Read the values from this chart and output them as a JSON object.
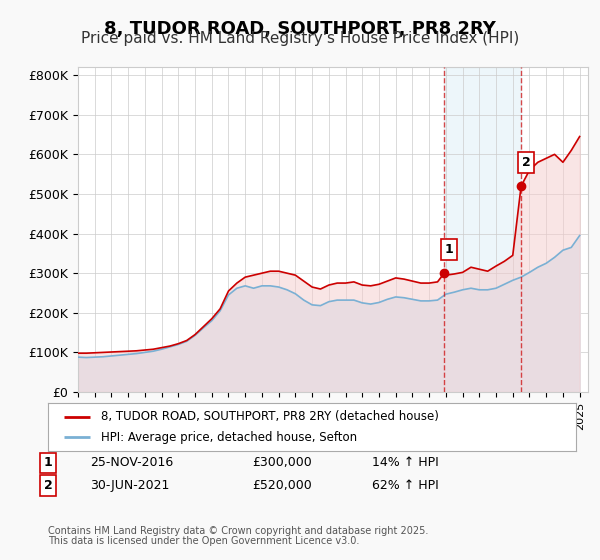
{
  "title": "8, TUDOR ROAD, SOUTHPORT, PR8 2RY",
  "subtitle": "Price paid vs. HM Land Registry's House Price Index (HPI)",
  "title_fontsize": 13,
  "subtitle_fontsize": 11,
  "background_color": "#f9f9f9",
  "plot_bg_color": "#ffffff",
  "red_line_color": "#cc0000",
  "blue_line_color": "#7ab0d4",
  "blue_fill_color": "#ddeef7",
  "ylim": [
    0,
    820000
  ],
  "yticks": [
    0,
    100000,
    200000,
    300000,
    400000,
    500000,
    600000,
    700000,
    800000
  ],
  "ytick_labels": [
    "£0",
    "£100K",
    "£200K",
    "£300K",
    "£400K",
    "£500K",
    "£600K",
    "£700K",
    "£800K"
  ],
  "xmin": 1995.0,
  "xmax": 2025.5,
  "sale1_x": 2016.9,
  "sale1_y": 300000,
  "sale1_label": "1",
  "sale1_date": "25-NOV-2016",
  "sale1_price": "£300,000",
  "sale1_hpi": "14% ↑ HPI",
  "sale2_x": 2021.5,
  "sale2_y": 520000,
  "sale2_label": "2",
  "sale2_date": "30-JUN-2021",
  "sale2_price": "£520,000",
  "sale2_hpi": "62% ↑ HPI",
  "legend_label_red": "8, TUDOR ROAD, SOUTHPORT, PR8 2RY (detached house)",
  "legend_label_blue": "HPI: Average price, detached house, Sefton",
  "footer_line1": "Contains HM Land Registry data © Crown copyright and database right 2025.",
  "footer_line2": "This data is licensed under the Open Government Licence v3.0.",
  "hpi_red_data": {
    "x": [
      1995.0,
      1995.5,
      1996.0,
      1996.5,
      1997.0,
      1997.5,
      1998.0,
      1998.5,
      1999.0,
      1999.5,
      2000.0,
      2000.5,
      2001.0,
      2001.5,
      2002.0,
      2002.5,
      2003.0,
      2003.5,
      2004.0,
      2004.5,
      2005.0,
      2005.5,
      2006.0,
      2006.5,
      2007.0,
      2007.5,
      2008.0,
      2008.5,
      2009.0,
      2009.5,
      2010.0,
      2010.5,
      2011.0,
      2011.5,
      2012.0,
      2012.5,
      2013.0,
      2013.5,
      2014.0,
      2014.5,
      2015.0,
      2015.5,
      2016.0,
      2016.5,
      2016.9,
      2017.0,
      2017.5,
      2018.0,
      2018.5,
      2019.0,
      2019.5,
      2020.0,
      2020.5,
      2021.0,
      2021.5,
      2022.0,
      2022.5,
      2023.0,
      2023.5,
      2024.0,
      2024.5,
      2025.0
    ],
    "y": [
      98000,
      98000,
      99000,
      100000,
      101000,
      102000,
      103000,
      104000,
      106000,
      108000,
      112000,
      116000,
      122000,
      130000,
      145000,
      165000,
      185000,
      210000,
      255000,
      275000,
      290000,
      295000,
      300000,
      305000,
      305000,
      300000,
      295000,
      280000,
      265000,
      260000,
      270000,
      275000,
      275000,
      278000,
      270000,
      268000,
      272000,
      280000,
      288000,
      285000,
      280000,
      275000,
      275000,
      278000,
      300000,
      295000,
      298000,
      302000,
      315000,
      310000,
      305000,
      318000,
      330000,
      345000,
      520000,
      560000,
      580000,
      590000,
      600000,
      580000,
      610000,
      645000
    ]
  },
  "hpi_blue_data": {
    "x": [
      1995.0,
      1995.5,
      1996.0,
      1996.5,
      1997.0,
      1997.5,
      1998.0,
      1998.5,
      1999.0,
      1999.5,
      2000.0,
      2000.5,
      2001.0,
      2001.5,
      2002.0,
      2002.5,
      2003.0,
      2003.5,
      2004.0,
      2004.5,
      2005.0,
      2005.5,
      2006.0,
      2006.5,
      2007.0,
      2007.5,
      2008.0,
      2008.5,
      2009.0,
      2009.5,
      2010.0,
      2010.5,
      2011.0,
      2011.5,
      2012.0,
      2012.5,
      2013.0,
      2013.5,
      2014.0,
      2014.5,
      2015.0,
      2015.5,
      2016.0,
      2016.5,
      2017.0,
      2017.5,
      2018.0,
      2018.5,
      2019.0,
      2019.5,
      2020.0,
      2020.5,
      2021.0,
      2021.5,
      2022.0,
      2022.5,
      2023.0,
      2023.5,
      2024.0,
      2024.5,
      2025.0
    ],
    "y": [
      88000,
      87000,
      88000,
      89000,
      91000,
      93000,
      95000,
      97000,
      100000,
      103000,
      108000,
      114000,
      120000,
      128000,
      143000,
      162000,
      180000,
      205000,
      245000,
      262000,
      268000,
      262000,
      268000,
      268000,
      265000,
      258000,
      248000,
      232000,
      220000,
      218000,
      228000,
      232000,
      232000,
      232000,
      225000,
      222000,
      226000,
      234000,
      240000,
      238000,
      234000,
      230000,
      230000,
      232000,
      247000,
      252000,
      258000,
      262000,
      258000,
      258000,
      262000,
      272000,
      282000,
      290000,
      302000,
      315000,
      325000,
      340000,
      358000,
      365000,
      395000
    ]
  }
}
